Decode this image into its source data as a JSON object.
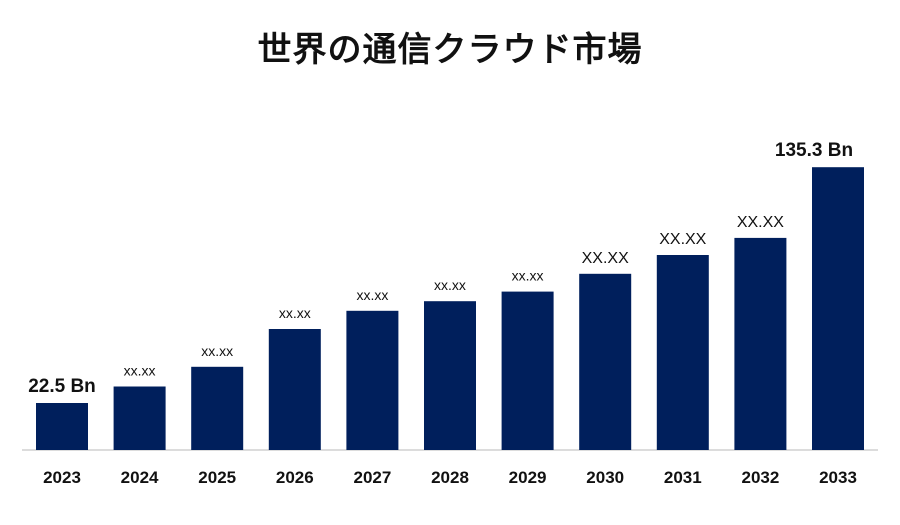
{
  "chart_data": {
    "type": "bar",
    "title": "世界の通信クラウド市場",
    "xlabel": "",
    "ylabel": "",
    "categories": [
      "2023",
      "2024",
      "2025",
      "2026",
      "2027",
      "2028",
      "2029",
      "2030",
      "2031",
      "2032",
      "2033"
    ],
    "values": [
      22.5,
      30.4,
      39.8,
      57.9,
      66.6,
      71.2,
      75.8,
      84.3,
      93.3,
      101.5,
      135.3
    ],
    "data_labels": [
      "22.5 Bn",
      "xx.xx",
      "xx.xx",
      "xx.xx",
      "xx.xx",
      "xx.xx",
      "xx.xx",
      "XX.XX",
      "XX.XX",
      "XX.XX",
      "135.3 Bn"
    ],
    "ylim": [
      0,
      140
    ],
    "bar_color": "#001f5c",
    "grid": false,
    "legend": "none"
  }
}
